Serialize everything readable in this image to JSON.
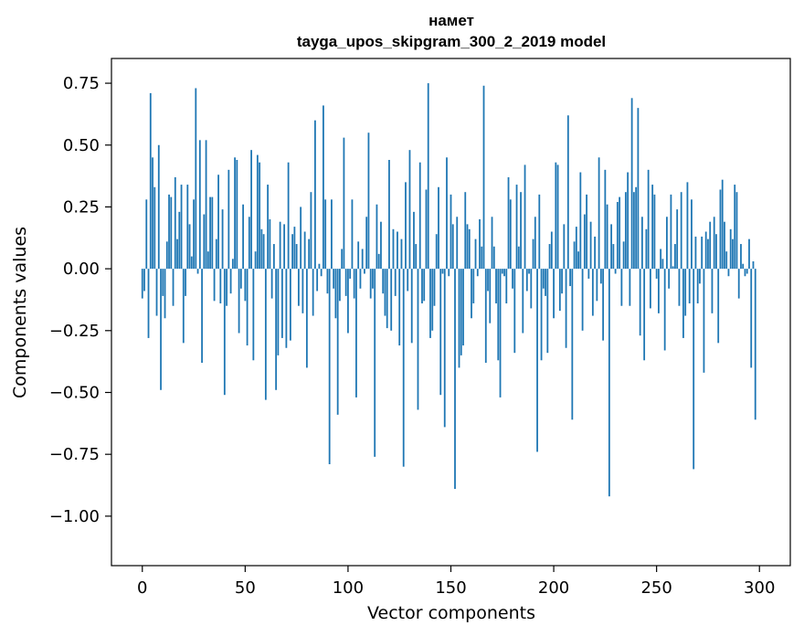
{
  "chart_data": {
    "type": "bar",
    "title": "намет",
    "subtitle": "tayga_upos_skipgram_300_2_2019 model",
    "xlabel": "Vector components",
    "ylabel": "Components values",
    "xlim": [
      -15,
      315
    ],
    "ylim": [
      -1.2,
      0.85
    ],
    "x_ticks": [
      {
        "value": 0,
        "label": "0"
      },
      {
        "value": 50,
        "label": "50"
      },
      {
        "value": 100,
        "label": "100"
      },
      {
        "value": 150,
        "label": "150"
      },
      {
        "value": 200,
        "label": "200"
      },
      {
        "value": 250,
        "label": "250"
      },
      {
        "value": 300,
        "label": "300"
      }
    ],
    "y_ticks": [
      {
        "value": 0.75,
        "label": "0.75"
      },
      {
        "value": 0.5,
        "label": "0.50"
      },
      {
        "value": 0.25,
        "label": "0.25"
      },
      {
        "value": 0.0,
        "label": "0.00"
      },
      {
        "value": -0.25,
        "label": "−0.25"
      },
      {
        "value": -0.5,
        "label": "−0.50"
      },
      {
        "value": -0.75,
        "label": "−0.75"
      },
      {
        "value": -1.0,
        "label": "−1.00"
      }
    ],
    "bar_color": "#1f77b4",
    "grid": false,
    "values": [
      -0.12,
      -0.09,
      0.28,
      -0.28,
      0.71,
      0.45,
      0.33,
      -0.19,
      0.5,
      -0.49,
      -0.11,
      -0.2,
      0.11,
      0.3,
      0.29,
      -0.15,
      0.37,
      0.12,
      0.23,
      0.34,
      -0.3,
      -0.11,
      0.34,
      0.18,
      0.05,
      0.28,
      0.73,
      -0.02,
      0.52,
      -0.38,
      0.22,
      0.52,
      0.07,
      0.29,
      0.29,
      -0.13,
      0.12,
      0.38,
      -0.14,
      0.24,
      -0.51,
      -0.15,
      0.4,
      -0.1,
      0.04,
      0.45,
      0.44,
      -0.26,
      -0.08,
      0.26,
      -0.13,
      -0.31,
      0.21,
      0.48,
      -0.37,
      0.07,
      0.46,
      0.43,
      0.16,
      0.14,
      -0.53,
      0.34,
      0.2,
      -0.12,
      0.1,
      -0.49,
      -0.35,
      0.19,
      -0.28,
      0.18,
      -0.32,
      0.43,
      -0.29,
      0.14,
      0.17,
      0.1,
      -0.15,
      0.25,
      -0.18,
      0.15,
      -0.4,
      0.12,
      0.31,
      -0.19,
      0.6,
      -0.09,
      0.02,
      -0.03,
      0.66,
      0.28,
      -0.1,
      -0.79,
      0.28,
      -0.08,
      -0.2,
      -0.59,
      -0.13,
      0.08,
      0.53,
      -0.11,
      -0.26,
      -0.04,
      0.28,
      -0.12,
      -0.52,
      0.11,
      -0.08,
      0.08,
      -0.02,
      0.21,
      0.55,
      -0.12,
      -0.08,
      -0.76,
      0.26,
      0.06,
      0.19,
      -0.1,
      -0.19,
      -0.24,
      0.44,
      -0.25,
      0.16,
      -0.11,
      0.15,
      -0.31,
      0.12,
      -0.8,
      0.35,
      -0.09,
      0.48,
      -0.3,
      0.23,
      0.1,
      -0.57,
      0.43,
      -0.14,
      -0.13,
      0.32,
      0.75,
      -0.28,
      -0.25,
      -0.15,
      0.14,
      0.33,
      -0.51,
      -0.02,
      -0.64,
      0.45,
      -0.03,
      0.3,
      0.18,
      -0.89,
      0.21,
      -0.4,
      -0.35,
      -0.31,
      0.31,
      0.18,
      0.16,
      -0.2,
      -0.14,
      0.12,
      -0.03,
      0.2,
      0.09,
      0.74,
      -0.38,
      -0.09,
      -0.22,
      0.21,
      0.09,
      -0.14,
      -0.37,
      -0.52,
      -0.02,
      -0.03,
      -0.14,
      0.37,
      0.28,
      -0.08,
      -0.34,
      0.34,
      0.09,
      0.31,
      -0.26,
      0.42,
      -0.09,
      -0.02,
      -0.16,
      0.12,
      0.21,
      -0.74,
      0.3,
      -0.37,
      -0.08,
      -0.11,
      -0.34,
      0.1,
      0.15,
      -0.2,
      0.43,
      0.42,
      -0.17,
      -0.1,
      0.18,
      -0.32,
      0.62,
      -0.07,
      -0.61,
      0.11,
      0.17,
      0.07,
      0.39,
      -0.25,
      0.22,
      0.3,
      -0.04,
      0.19,
      -0.19,
      0.13,
      -0.13,
      0.45,
      -0.06,
      -0.29,
      0.4,
      0.26,
      -0.92,
      0.18,
      0.1,
      -0.02,
      0.27,
      0.29,
      -0.15,
      0.11,
      0.31,
      0.39,
      -0.15,
      0.69,
      0.31,
      0.33,
      0.65,
      -0.27,
      0.21,
      -0.37,
      0.16,
      0.4,
      -0.16,
      0.34,
      0.3,
      -0.04,
      -0.18,
      0.08,
      0.04,
      -0.33,
      0.21,
      -0.08,
      0.3,
      0.01,
      0.1,
      0.24,
      -0.15,
      0.31,
      -0.28,
      -0.19,
      0.35,
      -0.14,
      0.28,
      -0.81,
      0.13,
      -0.14,
      -0.06,
      0.13,
      -0.42,
      0.15,
      0.12,
      0.19,
      -0.18,
      0.21,
      0.14,
      -0.3,
      0.32,
      0.36,
      0.19,
      0.07,
      -0.03,
      0.16,
      0.12,
      0.34,
      0.31,
      -0.12,
      0.1,
      0.02,
      -0.03,
      -0.02,
      0.12,
      -0.4,
      0.03,
      -0.61
    ]
  }
}
